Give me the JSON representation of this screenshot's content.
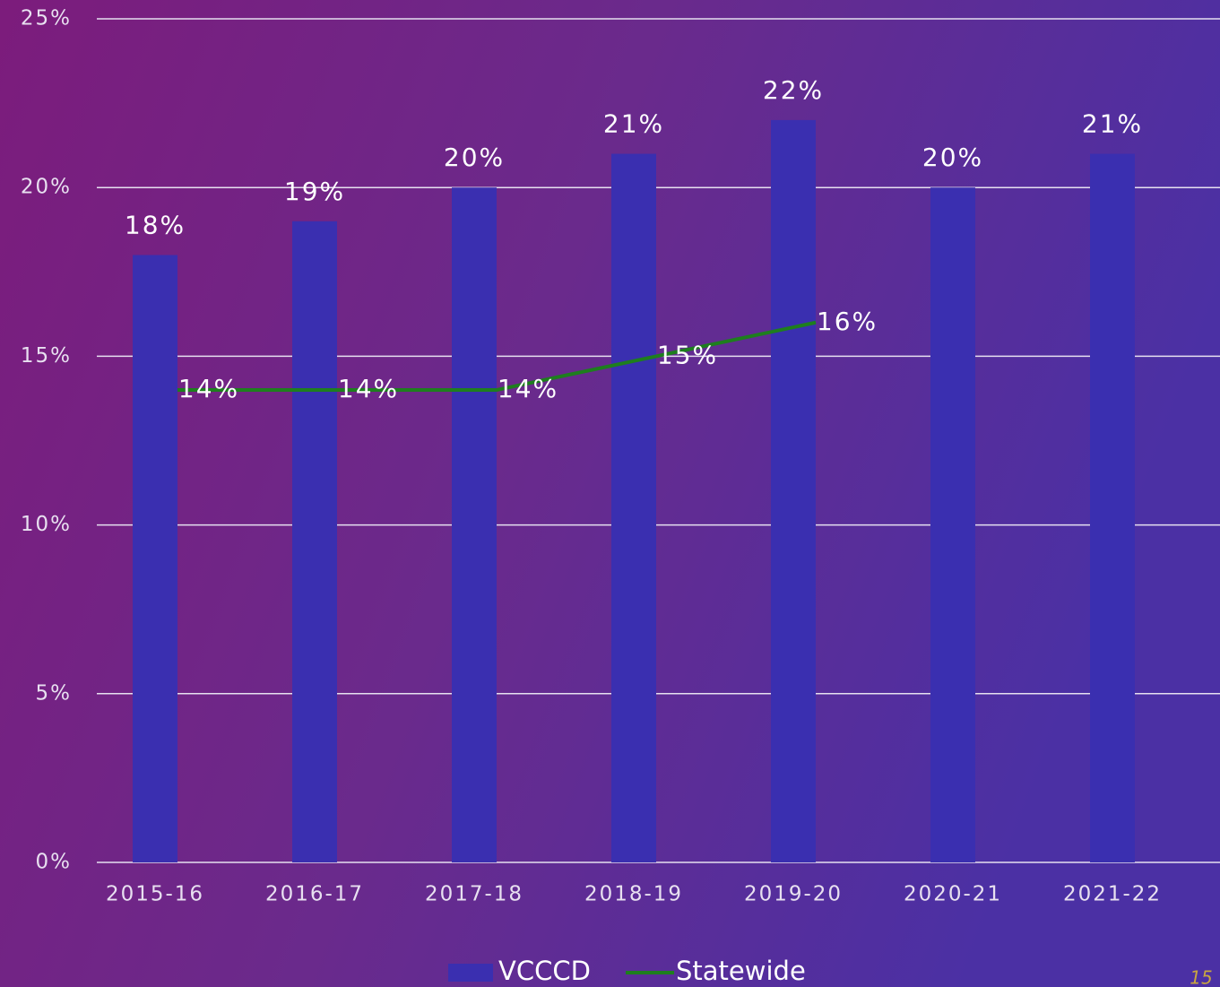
{
  "chart_data": {
    "type": "bar",
    "categories": [
      "2015-16",
      "2016-17",
      "2017-18",
      "2018-19",
      "2019-20",
      "2020-21",
      "2021-22"
    ],
    "series": [
      {
        "name": "VCCCD",
        "type": "bar",
        "color": "#3a2fb0",
        "values": [
          18,
          19,
          20,
          21,
          22,
          20,
          21
        ],
        "value_labels": [
          "18%",
          "19%",
          "20%",
          "21%",
          "22%",
          "20%",
          "21%"
        ]
      },
      {
        "name": "Statewide",
        "type": "line",
        "color": "#1e7e1e",
        "values": [
          14,
          14,
          14,
          15,
          16,
          null,
          null
        ],
        "value_labels": [
          "14%",
          "14%",
          "14%",
          "15%",
          "16%",
          null,
          null
        ]
      }
    ],
    "ylim": [
      0,
      25
    ],
    "yticks": [
      {
        "value": 0,
        "label": "0%"
      },
      {
        "value": 5,
        "label": "5%"
      },
      {
        "value": 10,
        "label": "10%"
      },
      {
        "value": 15,
        "label": "15%"
      },
      {
        "value": 20,
        "label": "20%"
      },
      {
        "value": 25,
        "label": "25%"
      }
    ],
    "grid": true,
    "legend": "bottom"
  },
  "page_number": "15"
}
